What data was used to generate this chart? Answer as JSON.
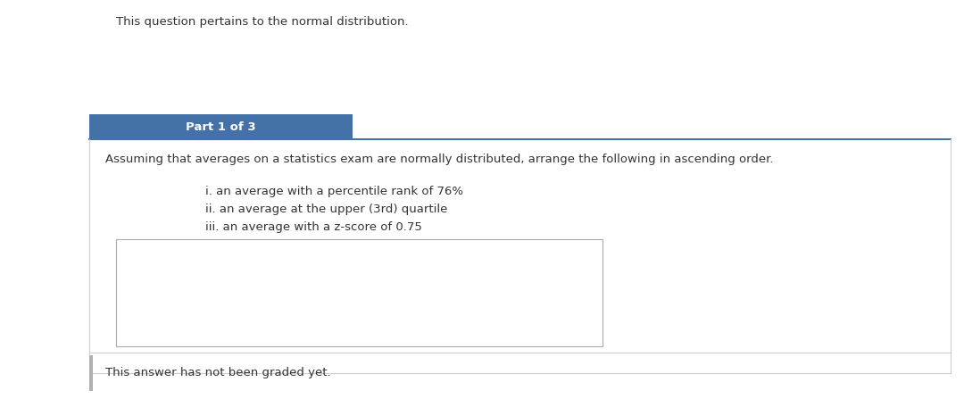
{
  "page_bg": "#ffffff",
  "top_text": "This question pertains to the normal distribution.",
  "part_label": "Part 1 of 3",
  "part_label_bg": "#4472a8",
  "part_label_text_color": "#ffffff",
  "question_text": "Assuming that averages on a statistics exam are normally distributed, arrange the following in ascending order.",
  "items": [
    "i. an average with a percentile rank of 76%",
    "ii. an average at the upper (3rd) quartile",
    "iii. an average with a z-score of 0.75"
  ],
  "footer_text": "This answer has not been graded yet.",
  "footer_bar_color": "#b0b0b0",
  "outer_box_border": "#4472a8",
  "inner_box_border": "#aaaaaa",
  "text_color": "#333333",
  "font_size": 9.5
}
